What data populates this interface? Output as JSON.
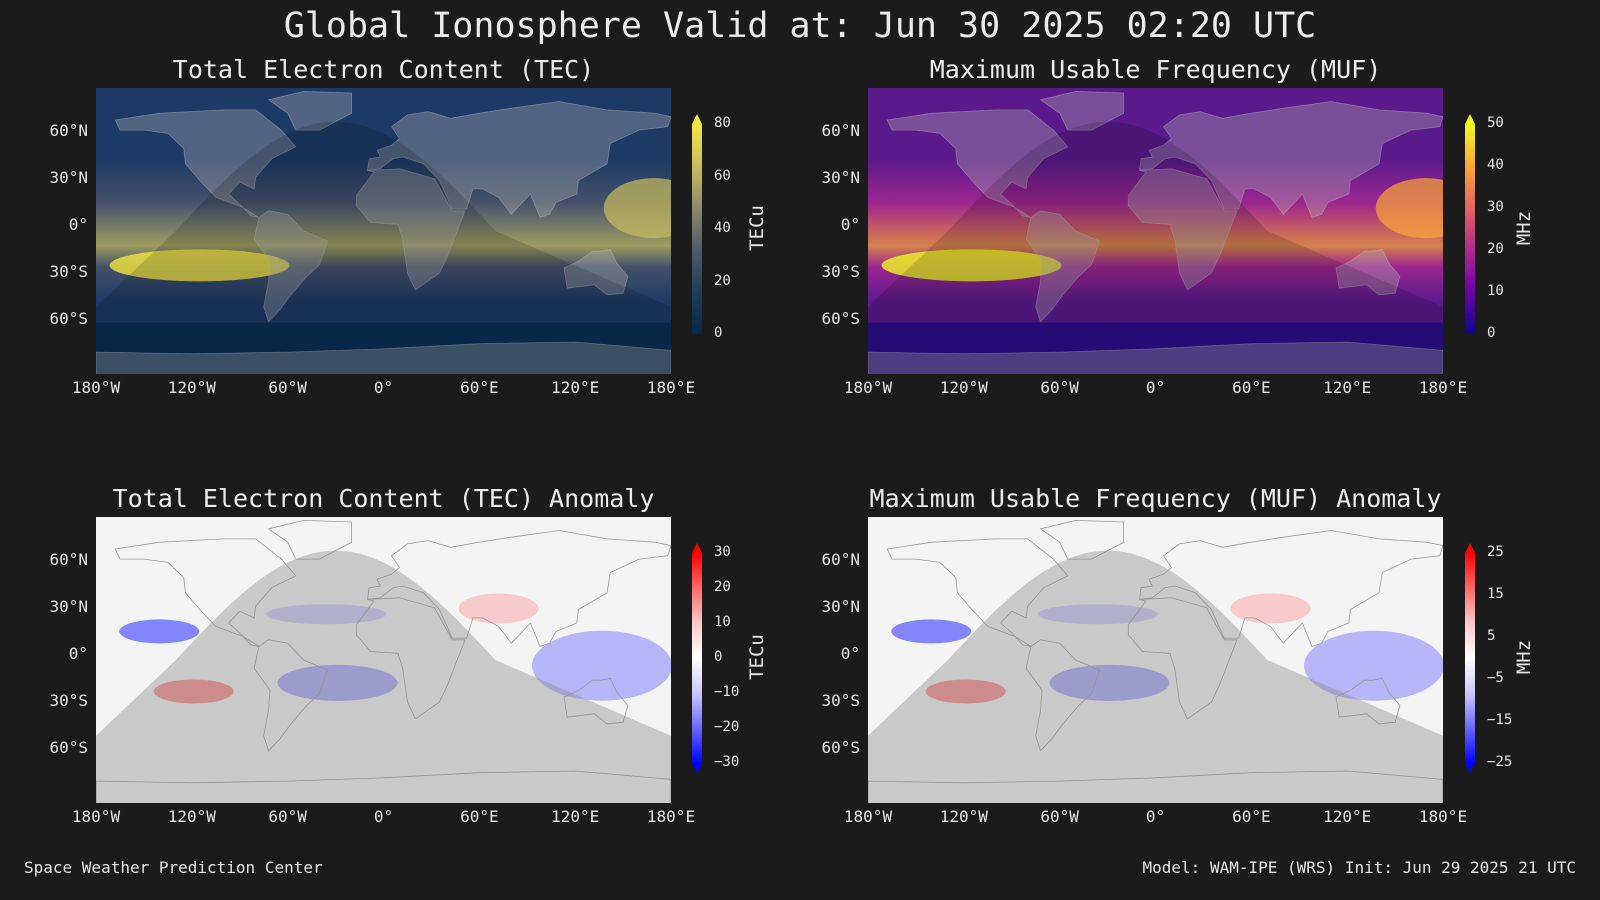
{
  "title": "Global Ionosphere Valid at: Jun 30 2025 02:20 UTC",
  "footer": {
    "left": "Space Weather Prediction Center",
    "right": "Model: WAM-IPE (WRS) Init: Jun 29 2025 21 UTC"
  },
  "lat_labels": [
    "60°N",
    "30°N",
    "0°",
    "30°S",
    "60°S"
  ],
  "lon_labels": [
    "180°W",
    "120°W",
    "60°W",
    "0°",
    "60°E",
    "120°E",
    "180°E"
  ],
  "panels": {
    "tec": {
      "title": "Total Electron Content (TEC)",
      "unit": "TECu",
      "ticks": [
        "80",
        "60",
        "40",
        "20",
        "0"
      ],
      "range": [
        0,
        80
      ],
      "colormap": [
        "#002a4a",
        "#1f3d5a",
        "#51596b",
        "#8c8a6b",
        "#c9bd5c",
        "#f5e641"
      ]
    },
    "muf": {
      "title": "Maximum Usable Frequency (MUF)",
      "unit": "MHz",
      "ticks": [
        "50",
        "40",
        "30",
        "20",
        "10",
        "0"
      ],
      "range": [
        0,
        50
      ],
      "colormap": [
        "#0d0887",
        "#6a00a8",
        "#b12a90",
        "#e16462",
        "#fca636",
        "#f0f921"
      ]
    },
    "tec_anom": {
      "title": "Total Electron Content (TEC) Anomaly",
      "unit": "TECu",
      "ticks": [
        "30",
        "20",
        "10",
        "0",
        "−10",
        "−20",
        "−30"
      ],
      "range": [
        -30,
        30
      ],
      "colormap": [
        "#0000ff",
        "#6a6aff",
        "#c8c8ff",
        "#ffffff",
        "#ffc8c8",
        "#ff6a6a",
        "#ff0000"
      ]
    },
    "muf_anom": {
      "title": "Maximum Usable Frequency (MUF) Anomaly",
      "unit": "MHz",
      "ticks": [
        "25",
        "15",
        "5",
        "−5",
        "−15",
        "−25"
      ],
      "range": [
        -25,
        25
      ],
      "colormap": [
        "#0000ff",
        "#6a6aff",
        "#c8c8ff",
        "#ffffff",
        "#ffc8c8",
        "#ff6a6a",
        "#ff0000"
      ]
    }
  }
}
